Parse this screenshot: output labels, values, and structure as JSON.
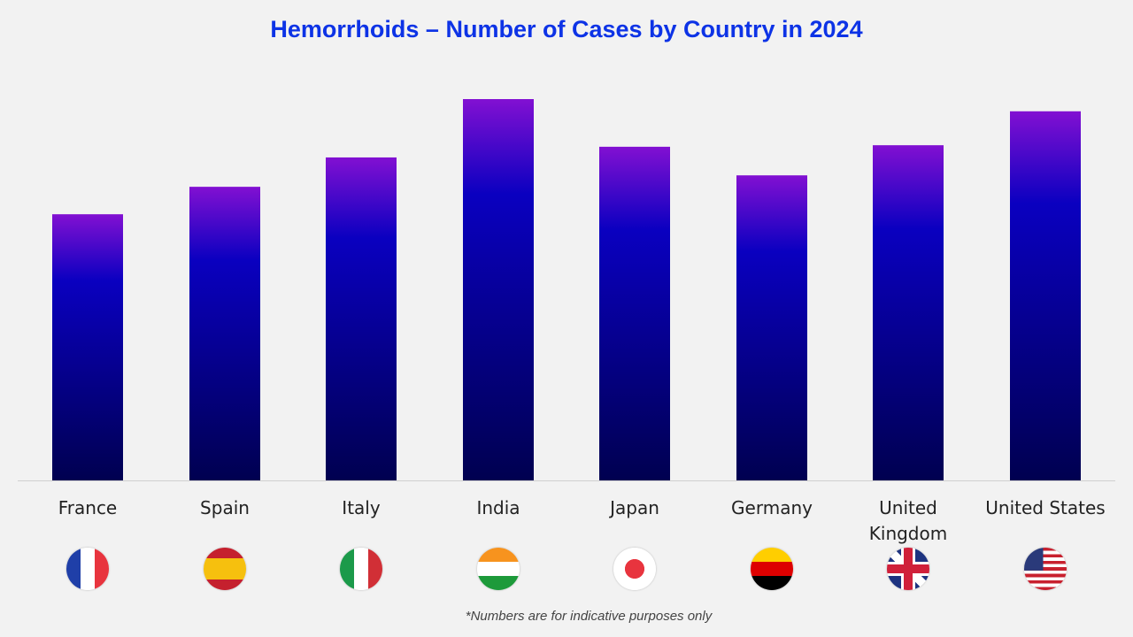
{
  "chart_data": {
    "type": "bar",
    "title": "Hemorrhoids – Number of Cases by Country in 2024",
    "categories": [
      "France",
      "Spain",
      "Italy",
      "India",
      "Japan",
      "Germany",
      "United Kingdom",
      "United States"
    ],
    "values": [
      69.8,
      77.0,
      84.7,
      100,
      87.5,
      80.0,
      87.9,
      96.8
    ],
    "ylim": [
      0,
      100
    ],
    "grid": false,
    "legend": "none",
    "bar_gradient": [
      "#8210d2",
      "#0a00c0",
      "#000050"
    ],
    "flags": [
      "france-flag",
      "spain-flag",
      "italy-flag",
      "india-flag",
      "japan-flag",
      "germany-flag",
      "uk-flag",
      "usa-flag"
    ],
    "footnote": "*Numbers are for indicative purposes only"
  }
}
